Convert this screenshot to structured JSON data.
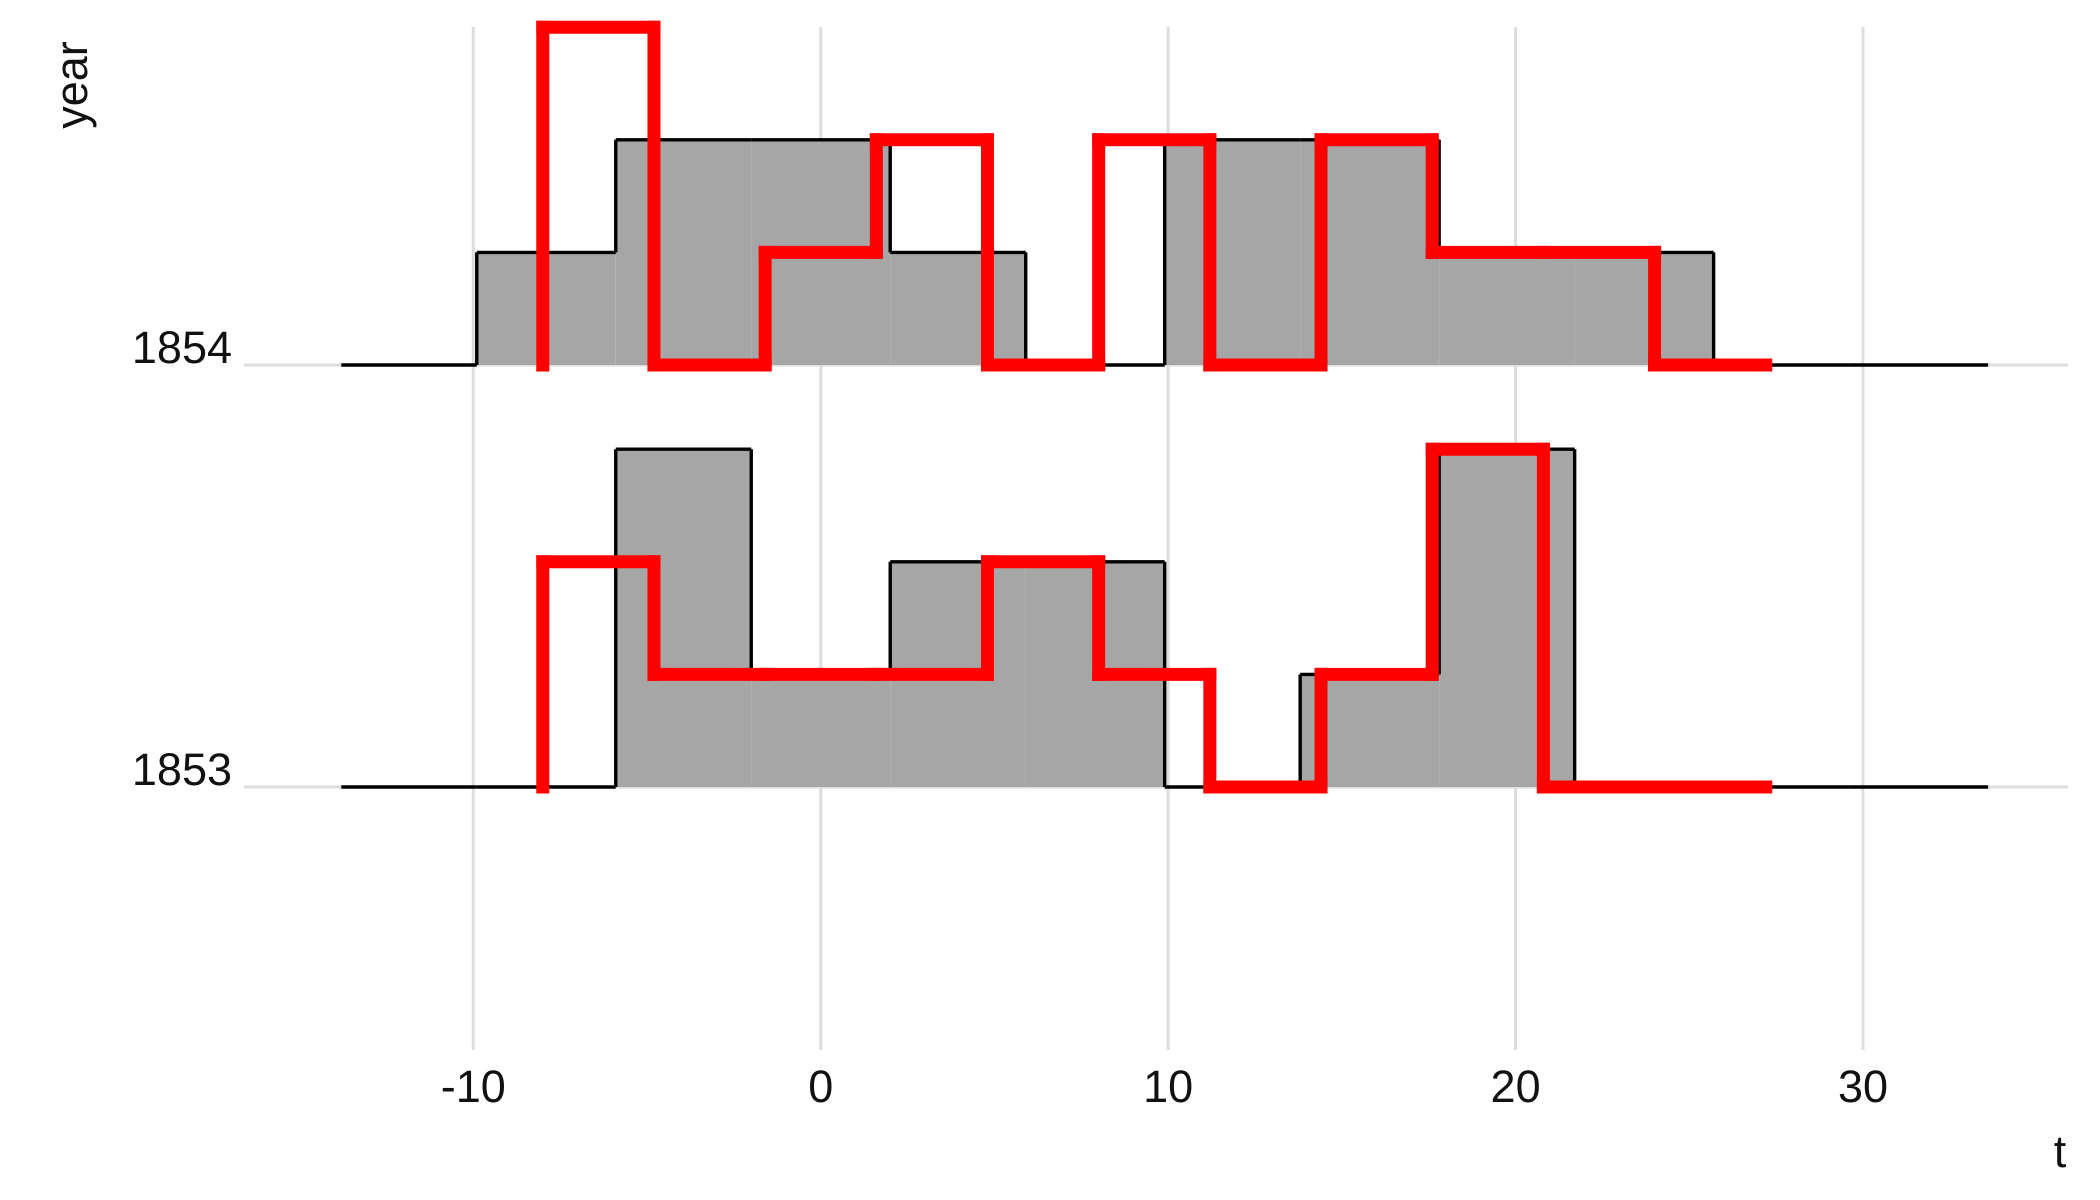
{
  "chart_data": {
    "type": "ridgeline-step",
    "x_label": "t",
    "y_label": "year",
    "categories": [
      "1853",
      "1854"
    ],
    "xlim": [
      -16.6,
      35.9
    ],
    "xticks": [
      -10,
      0,
      10,
      20,
      30
    ],
    "grid": true,
    "histograms": [
      {
        "color": "#a6a6a6",
        "bins": [
          -13.8,
          -9.9,
          -5.9,
          -2.0,
          2.0,
          5.9,
          9.9,
          13.8,
          17.8,
          21.7,
          25.7,
          29.6,
          33.6
        ],
        "values": [
          0,
          0,
          3,
          1,
          2,
          2,
          0,
          1,
          3,
          0,
          0,
          0
        ]
      },
      {
        "color": "#a6a6a6",
        "bins": [
          -13.8,
          -9.9,
          -5.9,
          -2.0,
          2.0,
          5.9,
          9.9,
          13.8,
          17.8,
          21.7,
          25.7,
          29.6,
          33.6
        ],
        "values": [
          0,
          1,
          2,
          2,
          1,
          0,
          2,
          2,
          1,
          1,
          0,
          0
        ]
      }
    ],
    "lines": [
      {
        "color": "#ff0000",
        "bins": [
          -8.0,
          -4.8,
          -1.6,
          1.6,
          4.8,
          8.0,
          11.2,
          14.4,
          17.6,
          20.8,
          24.0,
          27.2
        ],
        "values": [
          2,
          1,
          1,
          1,
          2,
          1,
          0,
          1,
          3,
          0,
          0
        ]
      },
      {
        "color": "#ff0000",
        "bins": [
          -8.0,
          -4.8,
          -1.6,
          1.6,
          4.8,
          8.0,
          11.2,
          14.4,
          17.6,
          20.8,
          24.0,
          27.2
        ],
        "values": [
          3,
          0,
          1,
          2,
          0,
          2,
          0,
          2,
          1,
          1,
          0
        ]
      }
    ]
  }
}
